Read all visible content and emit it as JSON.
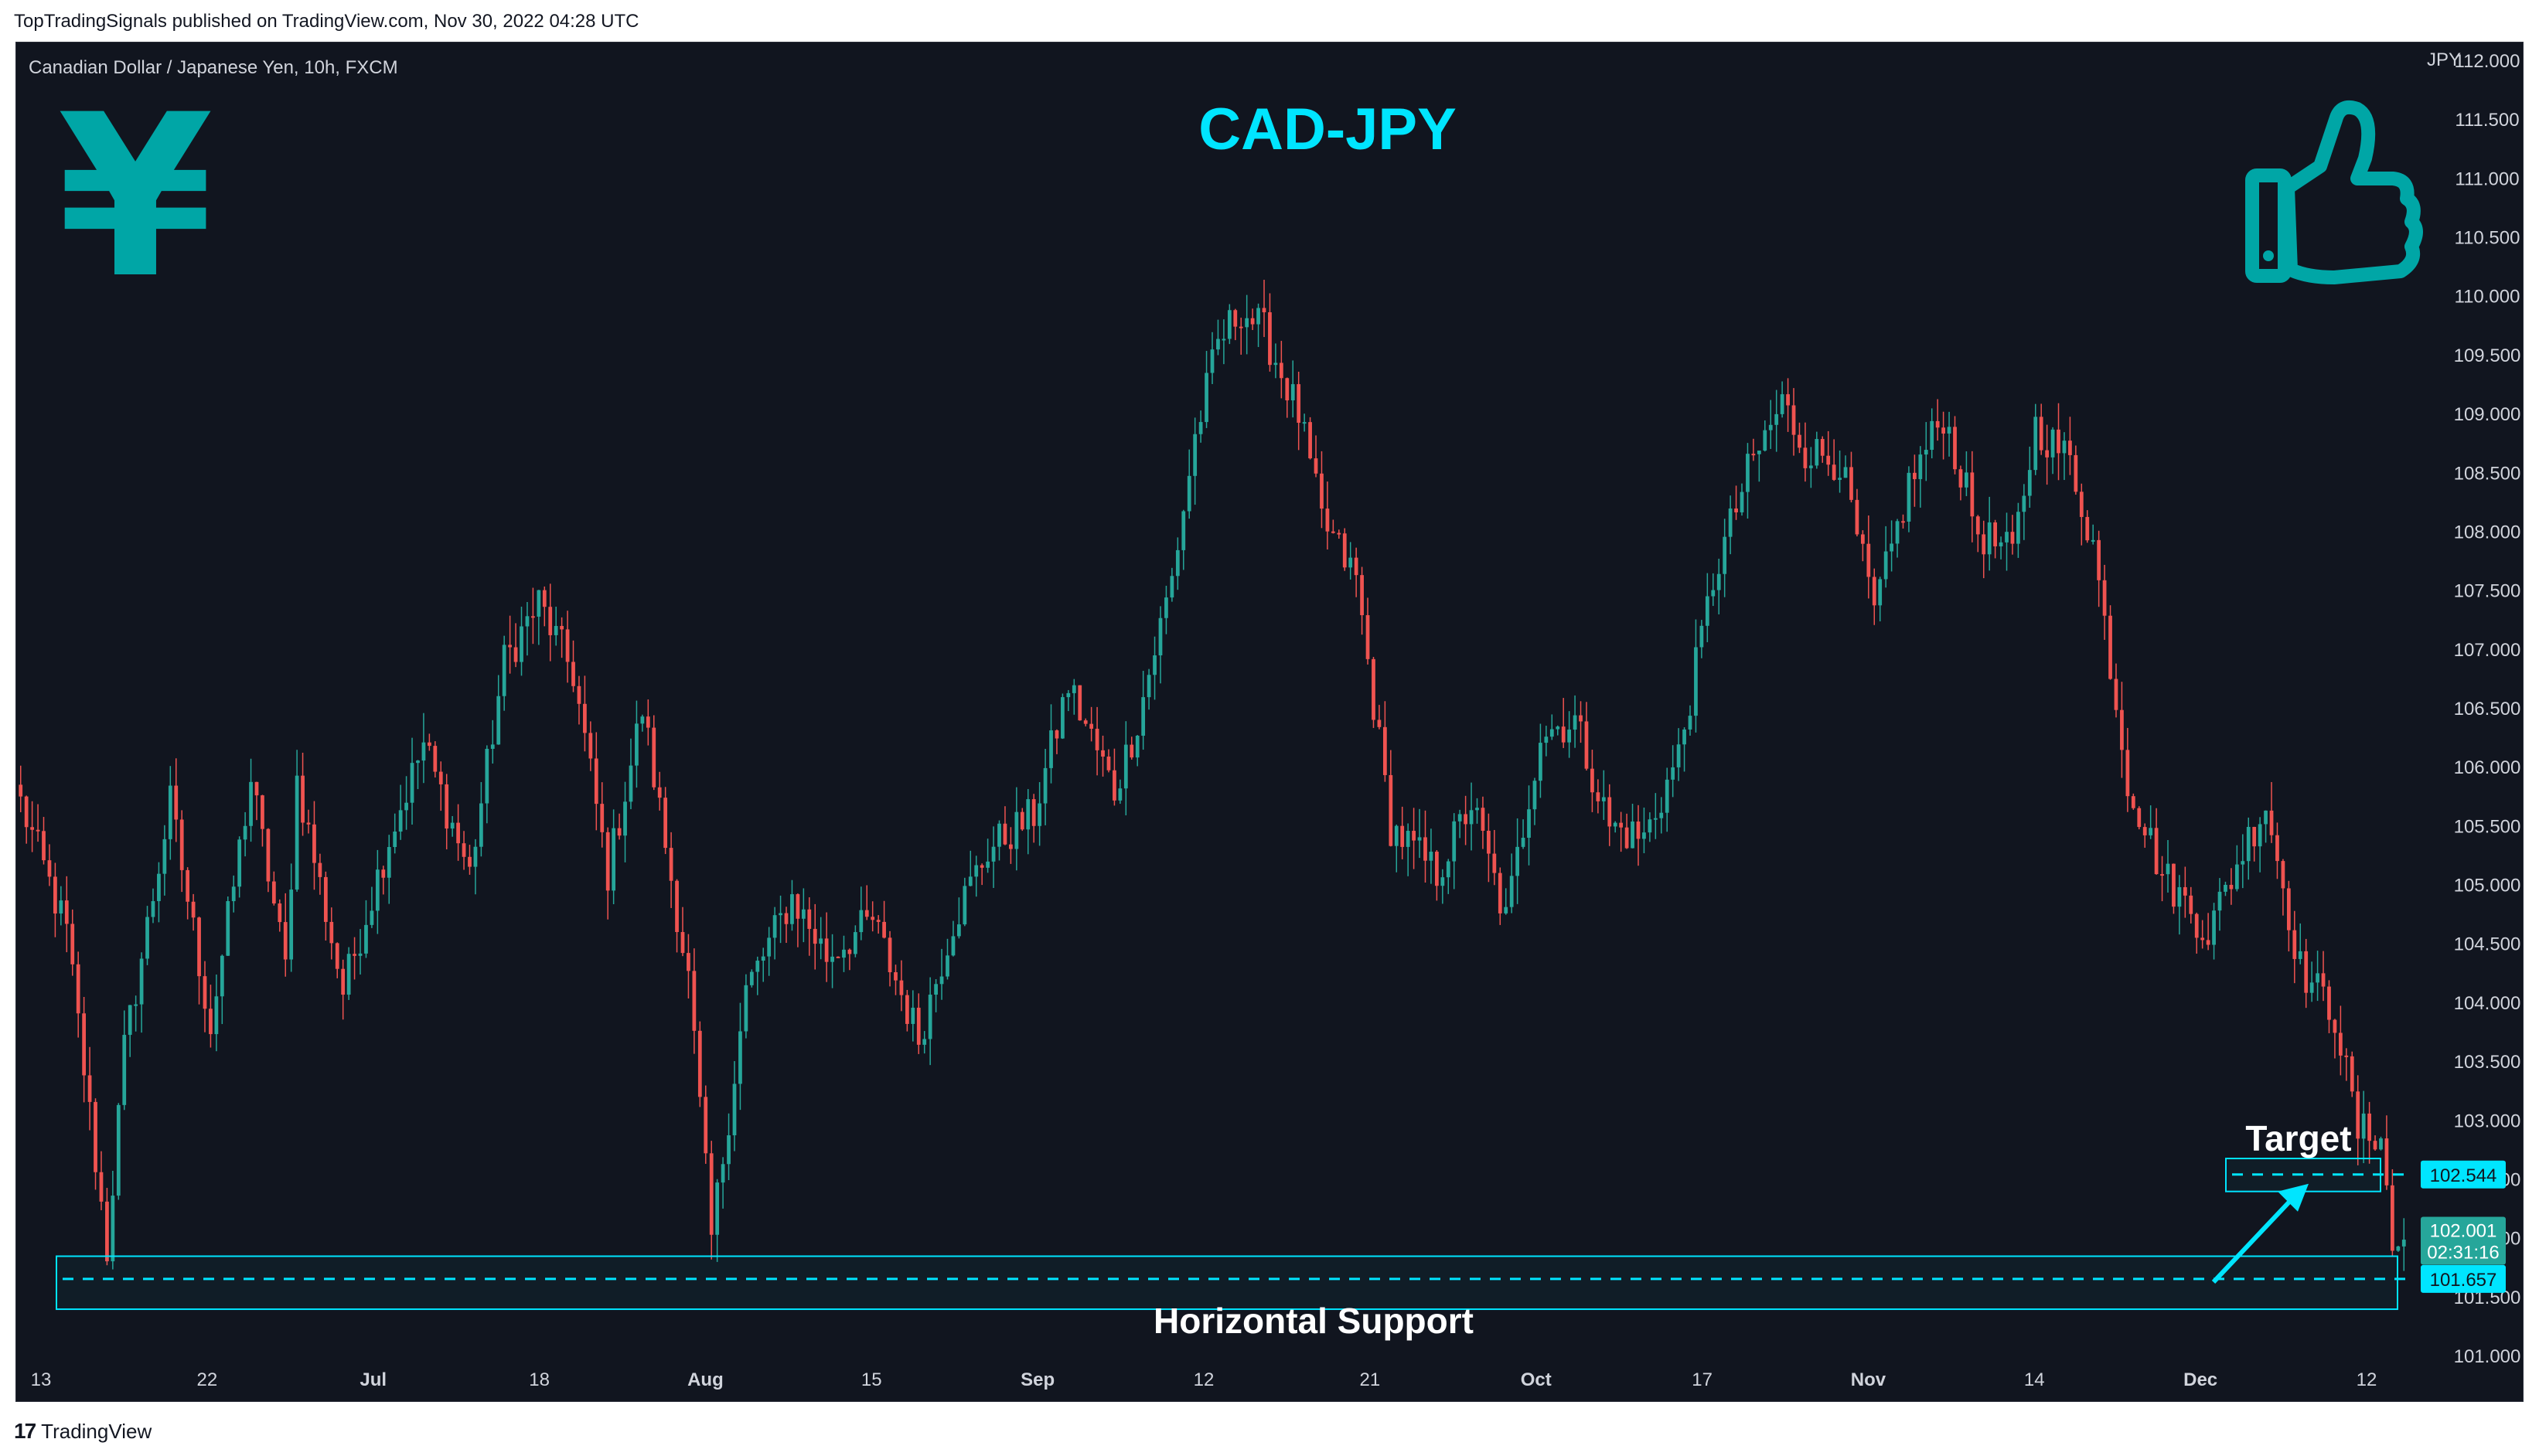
{
  "header": {
    "published_text": "TopTradingSignals published on TradingView.com, Nov 30, 2022 04:28 UTC"
  },
  "footer": {
    "logo_mark": "17",
    "brand": "TradingView"
  },
  "symbol_label": "Canadian Dollar / Japanese Yen, 10h, FXCM",
  "colors": {
    "background": "#11151f",
    "up": "#26a69a",
    "down": "#ef5350",
    "accent": "#00e5ff",
    "icon": "#00a6a6",
    "axis_text": "#d1d4dc",
    "current_price_bg": "#26a69a"
  },
  "icons": {
    "left": "yen-symbol-icon",
    "right": "thumbs-up-icon"
  },
  "yen_glyph": "¥",
  "chart_data": {
    "type": "candlestick",
    "title": "CAD-JPY",
    "xlabel": "",
    "ylabel": "",
    "y_unit": "JPY",
    "ylim": [
      101.0,
      112.0
    ],
    "y_ticks": [
      "101.000",
      "101.500",
      "102.000",
      "102.500",
      "103.000",
      "103.500",
      "104.000",
      "104.500",
      "105.000",
      "105.500",
      "106.000",
      "106.500",
      "107.000",
      "107.500",
      "108.000",
      "108.500",
      "109.000",
      "109.500",
      "110.000",
      "110.500",
      "111.000",
      "111.500",
      "112.000"
    ],
    "x_ticks": [
      {
        "label": "13",
        "month": false
      },
      {
        "label": "22",
        "month": false
      },
      {
        "label": "Jul",
        "month": true
      },
      {
        "label": "18",
        "month": false
      },
      {
        "label": "Aug",
        "month": true
      },
      {
        "label": "15",
        "month": false
      },
      {
        "label": "Sep",
        "month": true
      },
      {
        "label": "12",
        "month": false
      },
      {
        "label": "21",
        "month": false
      },
      {
        "label": "Oct",
        "month": true
      },
      {
        "label": "17",
        "month": false
      },
      {
        "label": "Nov",
        "month": true
      },
      {
        "label": "14",
        "month": false
      },
      {
        "label": "Dec",
        "month": true
      },
      {
        "label": "12",
        "month": false
      }
    ],
    "price_path": [
      [
        0,
        105.7
      ],
      [
        8,
        104.6
      ],
      [
        15,
        101.9
      ],
      [
        18,
        103.6
      ],
      [
        26,
        105.7
      ],
      [
        33,
        103.8
      ],
      [
        40,
        105.9
      ],
      [
        46,
        104.3
      ],
      [
        48,
        105.9
      ],
      [
        56,
        104.1
      ],
      [
        64,
        105.4
      ],
      [
        70,
        106.2
      ],
      [
        78,
        105.1
      ],
      [
        84,
        106.9
      ],
      [
        90,
        107.4
      ],
      [
        96,
        106.8
      ],
      [
        102,
        105.1
      ],
      [
        108,
        106.5
      ],
      [
        116,
        104.2
      ],
      [
        120,
        102.0
      ],
      [
        126,
        104.1
      ],
      [
        134,
        104.9
      ],
      [
        140,
        104.4
      ],
      [
        148,
        104.7
      ],
      [
        156,
        103.7
      ],
      [
        162,
        104.7
      ],
      [
        168,
        105.3
      ],
      [
        176,
        105.6
      ],
      [
        182,
        106.7
      ],
      [
        190,
        105.8
      ],
      [
        194,
        106.4
      ],
      [
        200,
        107.6
      ],
      [
        204,
        108.8
      ],
      [
        208,
        109.6
      ],
      [
        212,
        109.9
      ],
      [
        216,
        109.7
      ],
      [
        222,
        109.0
      ],
      [
        226,
        108.1
      ],
      [
        232,
        107.6
      ],
      [
        238,
        105.5
      ],
      [
        246,
        105.1
      ],
      [
        252,
        105.7
      ],
      [
        258,
        104.7
      ],
      [
        264,
        106.3
      ],
      [
        270,
        106.4
      ],
      [
        276,
        105.5
      ],
      [
        282,
        105.4
      ],
      [
        288,
        106.1
      ],
      [
        294,
        107.6
      ],
      [
        300,
        108.5
      ],
      [
        306,
        109.1
      ],
      [
        310,
        108.7
      ],
      [
        316,
        108.6
      ],
      [
        322,
        107.3
      ],
      [
        328,
        108.4
      ],
      [
        334,
        109.0
      ],
      [
        340,
        108.0
      ],
      [
        346,
        107.8
      ],
      [
        350,
        108.9
      ],
      [
        356,
        108.6
      ],
      [
        360,
        107.9
      ],
      [
        366,
        105.9
      ],
      [
        372,
        105.1
      ],
      [
        380,
        104.6
      ],
      [
        386,
        105.3
      ],
      [
        390,
        105.7
      ],
      [
        396,
        104.3
      ],
      [
        402,
        103.9
      ],
      [
        406,
        102.9
      ],
      [
        410,
        102.9
      ],
      [
        412,
        101.9
      ],
      [
        414,
        102.0
      ]
    ],
    "current_price": "102.001",
    "countdown": "02:31:16",
    "annotations": {
      "target_label": "Target",
      "target_price": "102.544",
      "target_value": 102.544,
      "support_label": "Horizontal Support",
      "support_price": "101.657",
      "support_value": 101.657,
      "support_zone": [
        101.4,
        101.85
      ],
      "target_zone": [
        102.4,
        102.68
      ]
    }
  }
}
